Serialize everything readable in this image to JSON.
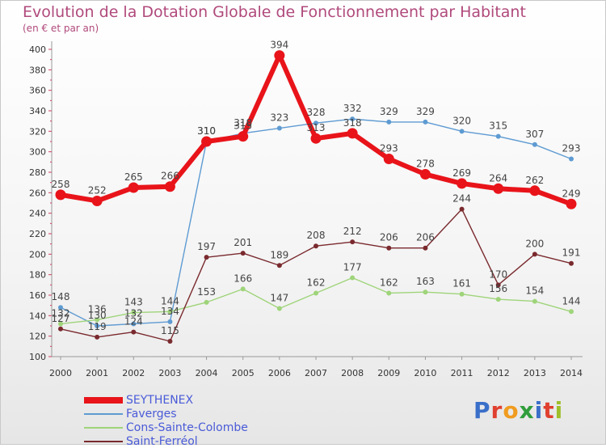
{
  "chart_data": {
    "type": "line",
    "title": "Evolution de la Dotation Globale de Fonctionnement par Habitant",
    "subtitle": "(en € et par an)",
    "categories": [
      "2000",
      "2001",
      "2002",
      "2003",
      "2004",
      "2005",
      "2006",
      "2007",
      "2008",
      "2009",
      "2010",
      "2011",
      "2012",
      "2013",
      "2014"
    ],
    "ylim": [
      100,
      400
    ],
    "yticks": [
      "100",
      "120",
      "140",
      "160",
      "180",
      "200",
      "220",
      "240",
      "260",
      "280",
      "300",
      "320",
      "340",
      "360",
      "380",
      "400"
    ],
    "grid": false,
    "legend_position": "bottom-left",
    "series": [
      {
        "name": "SEYTHENEX",
        "color": "#e8141a",
        "emphasis": true,
        "values": [
          258,
          252,
          265,
          266,
          310,
          315,
          394,
          313,
          318,
          293,
          278,
          269,
          264,
          262,
          249
        ]
      },
      {
        "name": "Faverges",
        "color": "#5e9bd2",
        "emphasis": false,
        "values": [
          148,
          130,
          132,
          134,
          310,
          318,
          323,
          328,
          332,
          329,
          329,
          320,
          315,
          307,
          293
        ]
      },
      {
        "name": "Cons-Sainte-Colombe",
        "color": "#9fd47a",
        "emphasis": false,
        "values": [
          132,
          136,
          143,
          144,
          153,
          166,
          147,
          162,
          177,
          162,
          163,
          161,
          156,
          154,
          144
        ]
      },
      {
        "name": "Saint-Ferréol",
        "color": "#7a2a2e",
        "emphasis": false,
        "values": [
          127,
          119,
          124,
          115,
          197,
          201,
          189,
          208,
          212,
          206,
          206,
          244,
          170,
          200,
          191
        ]
      }
    ]
  },
  "logo": {
    "letters": [
      "P",
      "r",
      "o",
      "x",
      "i",
      "t",
      "i"
    ]
  }
}
